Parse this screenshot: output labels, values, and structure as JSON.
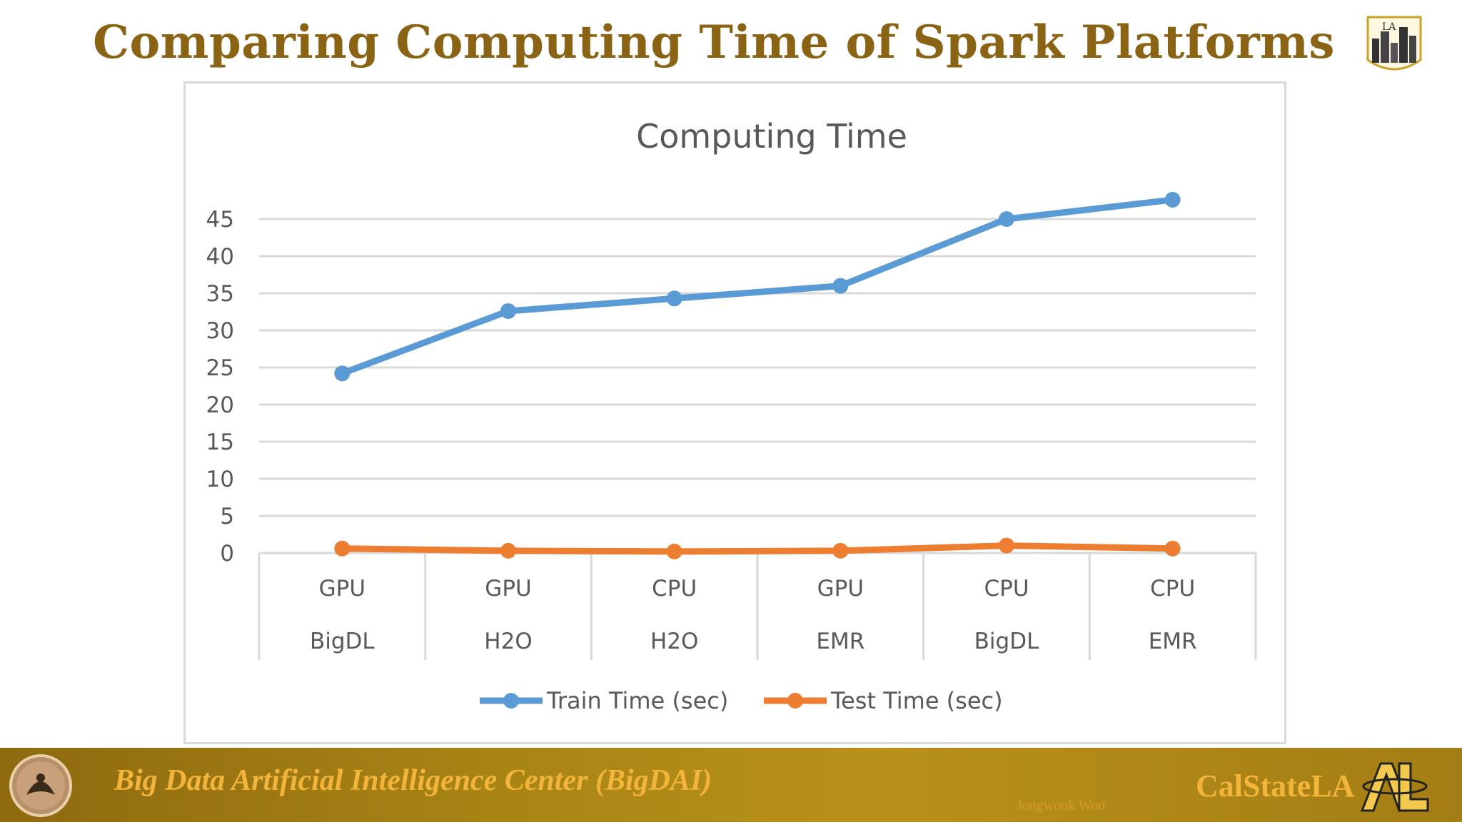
{
  "slide": {
    "title": "Comparing Computing Time of Spark Platforms"
  },
  "footer": {
    "center_name": "Big Data Artificial Intelligence Center (BigDAI)",
    "author": "Jongwook Woo",
    "brand": "CalStateLA",
    "logo_text": "LA"
  },
  "colors": {
    "title": "#8a6414",
    "train_series": "#5b9bd5",
    "test_series": "#ed7d31",
    "gridline": "#d9d9d9",
    "axis_text": "#595959"
  },
  "chart_data": {
    "type": "line",
    "title": "Computing Time",
    "xlabel": "",
    "ylabel": "",
    "categories": [
      [
        "GPU",
        "BigDL"
      ],
      [
        "GPU",
        "H2O"
      ],
      [
        "CPU",
        "H2O"
      ],
      [
        "GPU",
        "EMR"
      ],
      [
        "CPU",
        "BigDL"
      ],
      [
        "CPU",
        "EMR"
      ]
    ],
    "series": [
      {
        "name": "Train Time (sec)",
        "values": [
          24.2,
          32.6,
          34.3,
          36.0,
          45.0,
          47.6
        ]
      },
      {
        "name": "Test Time (sec)",
        "values": [
          0.6,
          0.3,
          0.2,
          0.3,
          1.0,
          0.6
        ]
      }
    ],
    "ylim": [
      0,
      45
    ],
    "yticks": [
      0,
      5,
      10,
      15,
      20,
      25,
      30,
      35,
      40,
      45
    ],
    "grid": true,
    "legend": "bottom"
  }
}
